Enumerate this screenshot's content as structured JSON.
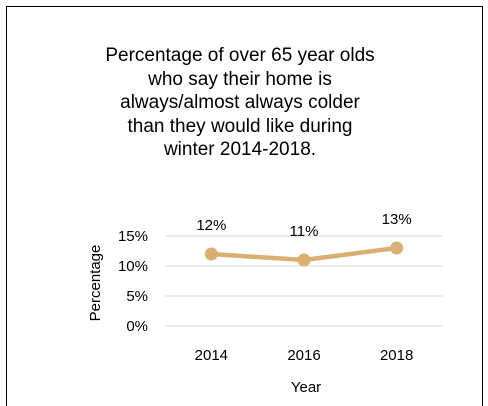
{
  "chart_data": {
    "type": "line",
    "title_lines": [
      "Percentage of over 65 year olds",
      "who say their home is",
      "always/almost always colder",
      "than they would like during",
      "winter 2014-2018."
    ],
    "xlabel": "Year",
    "ylabel": "Percentage",
    "categories": [
      "2014",
      "2016",
      "2018"
    ],
    "series": [
      {
        "values": [
          12,
          11,
          13
        ],
        "labels": [
          "12%",
          "11%",
          "13%"
        ],
        "color": "#D9AF72"
      }
    ],
    "ylim": [
      0,
      15
    ],
    "yticks": [
      0,
      5,
      10,
      15
    ],
    "ytick_labels": [
      "0%",
      "5%",
      "10%",
      "15%"
    ],
    "grid": true,
    "legend": "none"
  }
}
